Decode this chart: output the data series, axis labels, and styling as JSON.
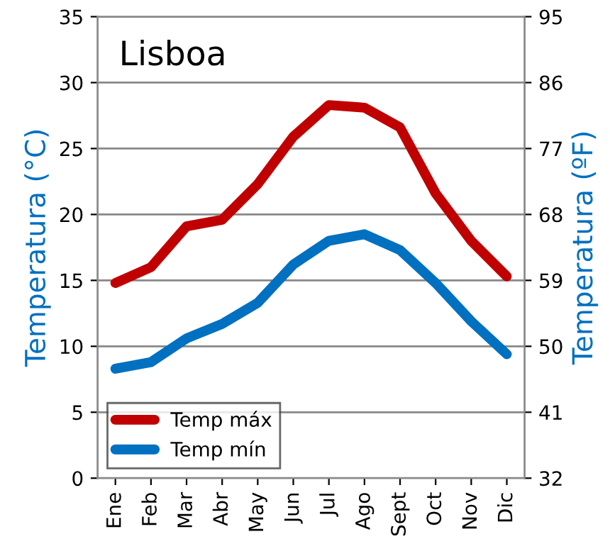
{
  "chart_data": {
    "type": "line",
    "title": "Lisboa",
    "ylabel": "Temperatura (°C)",
    "y2label": "Temperatura (ºF)",
    "categories": [
      "Ene",
      "Feb",
      "Mar",
      "Abr",
      "May",
      "Jun",
      "Jul",
      "Ago",
      "Sept",
      "Oct",
      "Nov",
      "Dic"
    ],
    "series": [
      {
        "name": "Temp máx",
        "color": "#c00000",
        "values": [
          14.8,
          16.0,
          19.1,
          19.6,
          22.3,
          25.9,
          28.3,
          28.1,
          26.6,
          21.6,
          18.0,
          15.3
        ]
      },
      {
        "name": "Temp mín",
        "color": "#0070c0",
        "values": [
          8.3,
          8.8,
          10.6,
          11.7,
          13.3,
          16.2,
          18.0,
          18.5,
          17.3,
          14.8,
          11.9,
          9.4
        ]
      }
    ],
    "ylim": [
      0,
      35
    ],
    "yticks": [
      0,
      5,
      10,
      15,
      20,
      25,
      30,
      35
    ],
    "y2lim": [
      32,
      95
    ],
    "y2ticks": [
      32,
      41,
      50,
      59,
      68,
      77,
      86,
      95
    ],
    "grid": "y",
    "legend": "bottom left",
    "marker": "none",
    "line_style": "solid"
  }
}
